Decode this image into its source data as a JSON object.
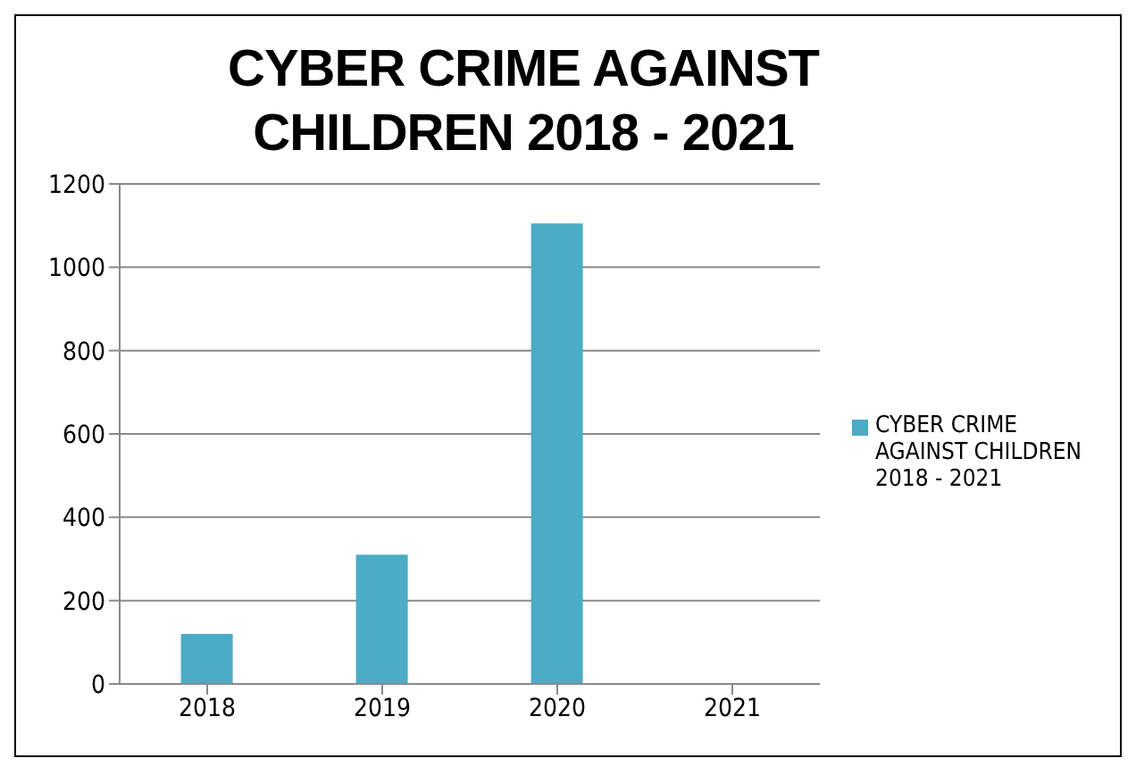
{
  "chart_data": {
    "type": "bar",
    "title": "CYBER CRIME AGAINST CHILDREN 2018 - 2021",
    "categories": [
      "2018",
      "2019",
      "2020",
      "2021"
    ],
    "series": [
      {
        "name": "CYBER CRIME AGAINST CHILDREN 2018 - 2021",
        "color": "#4bacc6",
        "values": [
          120,
          310,
          1105,
          0
        ]
      }
    ],
    "ylim": [
      0,
      1200
    ],
    "yticks": [
      0,
      200,
      400,
      600,
      800,
      1000,
      1200
    ],
    "grid": "y",
    "legend": "right"
  }
}
